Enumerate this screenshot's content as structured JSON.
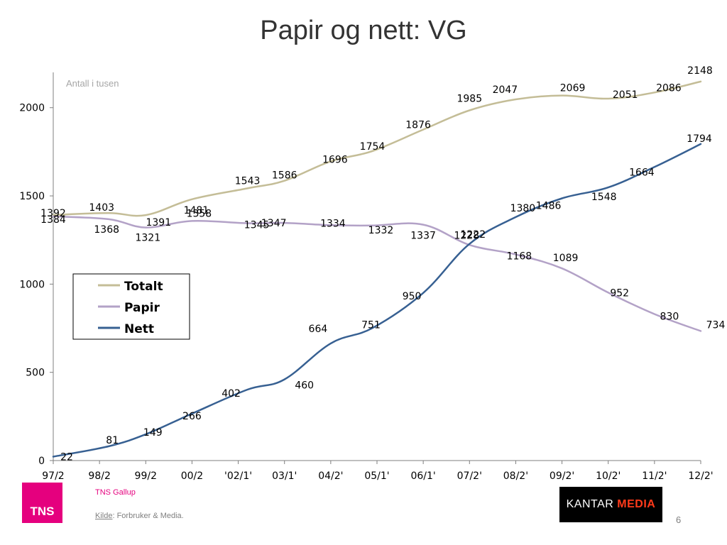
{
  "slide": {
    "title": "Papir og nett: VG",
    "footer_brand": "TNS Gallup",
    "source_label": "Kilde",
    "source_text": ":  Forbruker & Media.",
    "page_number": "6",
    "logos": {
      "tns_text": "TNS",
      "tns_color": "#e5007e",
      "kantar_text": "KANTAR",
      "media_text": "MEDIA"
    }
  },
  "chart_data": {
    "type": "line",
    "ylabel": "Antall i tusen",
    "ylim": [
      0,
      2200
    ],
    "yticks": [
      0,
      500,
      1000,
      1500,
      2000
    ],
    "grid": false,
    "legend_placement": "left-middle",
    "categories": [
      "97/2",
      "98/2",
      "99/2",
      "00/2",
      "'02/1'",
      "03/1'",
      "04/2'",
      "05/1'",
      "06/1'",
      "07/2'",
      "08/2'",
      "09/2'",
      "10/2'",
      "11/2'",
      "12/2'"
    ],
    "series": [
      {
        "name": "Totalt",
        "color": "#c4bd97",
        "points": [
          {
            "x": 0.0,
            "y": 1392,
            "label": "1392"
          },
          {
            "x": 1.2,
            "y": 1403,
            "label": "1403"
          },
          {
            "x": 2.0,
            "y": 1391,
            "label": "1391"
          },
          {
            "x": 3.0,
            "y": 1481,
            "label": "1481"
          },
          {
            "x": 4.2,
            "y": 1543,
            "label": "1543"
          },
          {
            "x": 5.0,
            "y": 1586,
            "label": "1586"
          },
          {
            "x": 6.0,
            "y": 1696,
            "label": "1696"
          },
          {
            "x": 6.9,
            "y": 1754,
            "label": "1754"
          },
          {
            "x": 8.0,
            "y": 1876,
            "label": "1876"
          },
          {
            "x": 9.0,
            "y": 1985,
            "label": "1985"
          },
          {
            "x": 10.0,
            "y": 2047,
            "label": "2047"
          },
          {
            "x": 11.0,
            "y": 2069,
            "label": "2069"
          },
          {
            "x": 12.0,
            "y": 2051,
            "label": "2051"
          },
          {
            "x": 13.0,
            "y": 2086,
            "label": "2086"
          },
          {
            "x": 14.0,
            "y": 2148,
            "label": "2148"
          }
        ]
      },
      {
        "name": "Papir",
        "color": "#b3a2c7",
        "points": [
          {
            "x": 0.0,
            "y": 1384,
            "label": "1384"
          },
          {
            "x": 1.2,
            "y": 1368,
            "label": "1368"
          },
          {
            "x": 2.0,
            "y": 1321,
            "label": "1321"
          },
          {
            "x": 3.0,
            "y": 1358,
            "label": "1358"
          },
          {
            "x": 4.2,
            "y": 1345,
            "label": "1345"
          },
          {
            "x": 5.0,
            "y": 1347,
            "label": "1347"
          },
          {
            "x": 6.0,
            "y": 1334,
            "label": "1334"
          },
          {
            "x": 6.9,
            "y": 1332,
            "label": "1332"
          },
          {
            "x": 8.0,
            "y": 1337,
            "label": "1337"
          },
          {
            "x": 9.0,
            "y": 1222,
            "label": "1222"
          },
          {
            "x": 10.0,
            "y": 1168,
            "label": "1168"
          },
          {
            "x": 11.0,
            "y": 1089,
            "label": "1089"
          },
          {
            "x": 12.0,
            "y": 952,
            "label": "952"
          },
          {
            "x": 13.0,
            "y": 830,
            "label": "830"
          },
          {
            "x": 14.0,
            "y": 734,
            "label": "734"
          }
        ]
      },
      {
        "name": "Nett",
        "color": "#376092",
        "points": [
          {
            "x": 0.0,
            "y": 22,
            "label": "22"
          },
          {
            "x": 1.2,
            "y": 81,
            "label": "81"
          },
          {
            "x": 2.0,
            "y": 149,
            "label": "149"
          },
          {
            "x": 3.0,
            "y": 266,
            "label": "266"
          },
          {
            "x": 4.2,
            "y": 402,
            "label": "402"
          },
          {
            "x": 5.0,
            "y": 460,
            "label": "460"
          },
          {
            "x": 6.0,
            "y": 664,
            "label": "664"
          },
          {
            "x": 6.9,
            "y": 751,
            "label": "751"
          },
          {
            "x": 8.0,
            "y": 950,
            "label": "950"
          },
          {
            "x": 9.0,
            "y": 1228,
            "label": "1228"
          },
          {
            "x": 10.0,
            "y": 1380,
            "label": "1380"
          },
          {
            "x": 11.0,
            "y": 1486,
            "label": "1486"
          },
          {
            "x": 12.0,
            "y": 1548,
            "label": "1548"
          },
          {
            "x": 13.0,
            "y": 1664,
            "label": "1664"
          },
          {
            "x": 14.0,
            "y": 1794,
            "label": "1794"
          }
        ]
      }
    ]
  }
}
